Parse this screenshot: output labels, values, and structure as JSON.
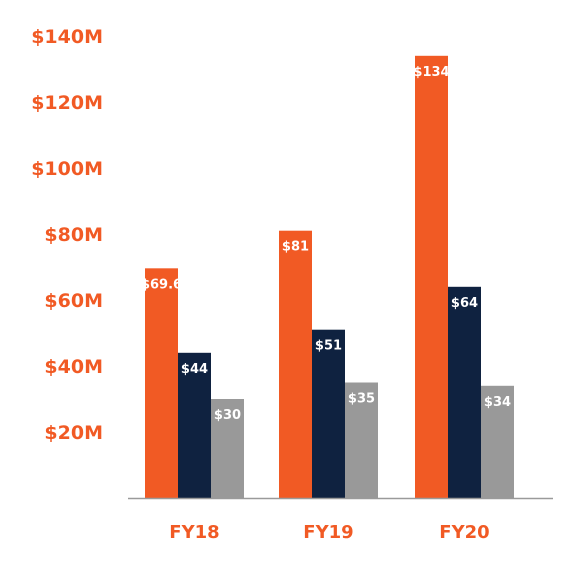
{
  "chart_data": {
    "type": "bar",
    "title": "",
    "xlabel": "",
    "ylabel": "",
    "categories": [
      "FY18",
      "FY19",
      "FY20"
    ],
    "series": [
      {
        "values": [
          69.6,
          81,
          134
        ],
        "labels": [
          "$69.6",
          "$81",
          "$134"
        ],
        "color": "#f15a24"
      },
      {
        "values": [
          44,
          51,
          64
        ],
        "labels": [
          "$44",
          "$51",
          "$64"
        ],
        "color": "#0f2240"
      },
      {
        "values": [
          30,
          35,
          34
        ],
        "labels": [
          "$30",
          "$35",
          "$34"
        ],
        "color": "#999999"
      }
    ],
    "ylim": [
      0,
      140
    ],
    "yticks": [
      20,
      40,
      60,
      80,
      100,
      120,
      140
    ],
    "ytick_labels": [
      "$20M",
      "$40M",
      "$60M",
      "$80M",
      "$100M",
      "$120M",
      "$140M"
    ],
    "grid": false,
    "legend": "none",
    "colors": {
      "tick_text": "#f15a24",
      "category_text": "#f15a24",
      "axis": "#9a9a9a"
    }
  }
}
